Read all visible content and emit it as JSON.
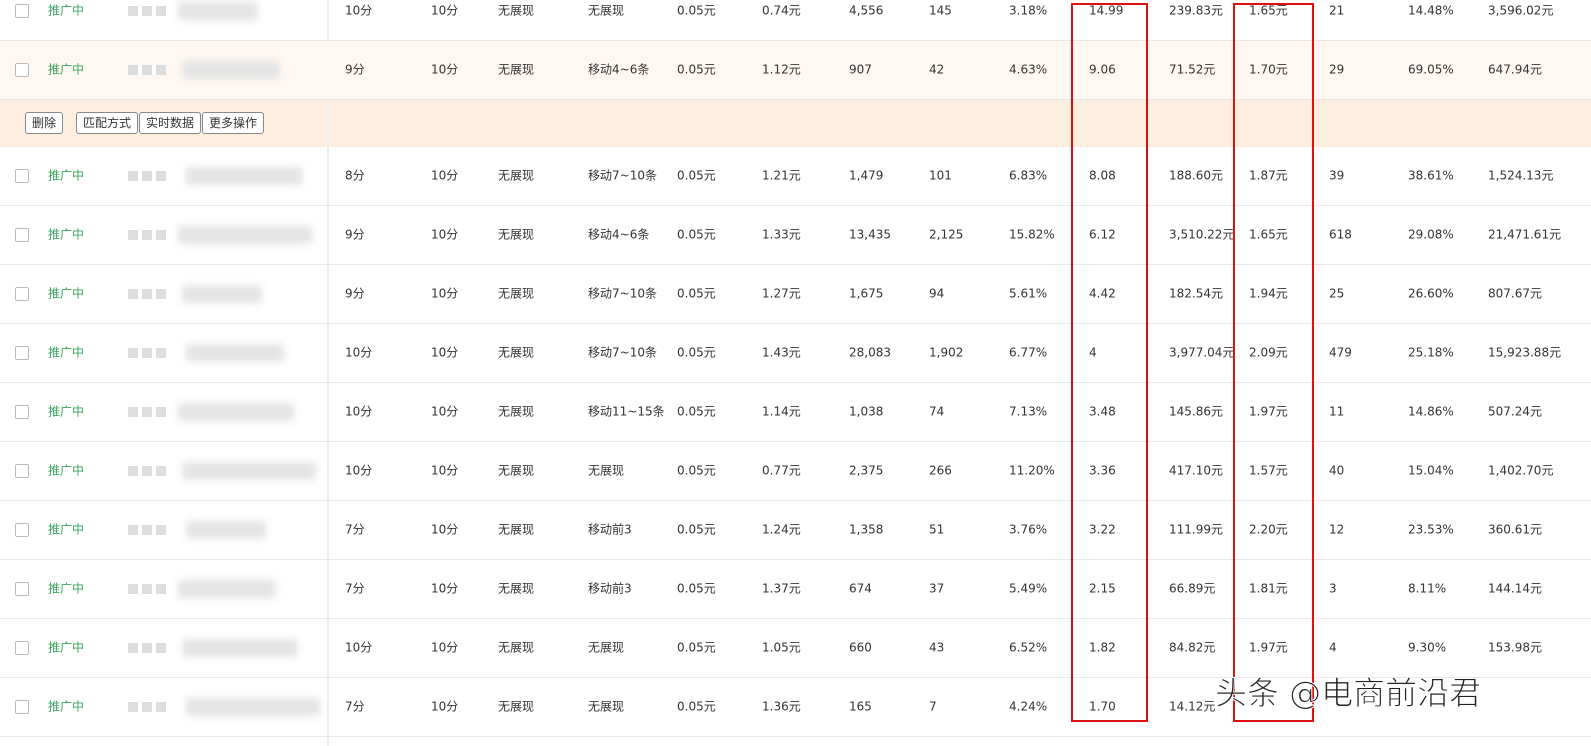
{
  "table": {
    "rows": [
      {
        "status": "推广中",
        "cells": [
          "10分",
          "10分",
          "无展现",
          "无展现",
          "0.05元",
          "0.74元",
          "4,556",
          "145",
          "3.18%",
          "14.99",
          "239.83元",
          "1.65元",
          "21",
          "14.48%",
          "3,596.02元"
        ]
      },
      {
        "status": "推广中",
        "cells": [
          "9分",
          "10分",
          "无展现",
          "移动4~6条",
          "0.05元",
          "1.12元",
          "907",
          "42",
          "4.63%",
          "9.06",
          "71.52元",
          "1.70元",
          "29",
          "69.05%",
          "647.94元"
        ]
      },
      {
        "status": "推广中",
        "cells": [
          "8分",
          "10分",
          "无展现",
          "移动7~10条",
          "0.05元",
          "1.21元",
          "1,479",
          "101",
          "6.83%",
          "8.08",
          "188.60元",
          "1.87元",
          "39",
          "38.61%",
          "1,524.13元"
        ]
      },
      {
        "status": "推广中",
        "cells": [
          "9分",
          "10分",
          "无展现",
          "移动4~6条",
          "0.05元",
          "1.33元",
          "13,435",
          "2,125",
          "15.82%",
          "6.12",
          "3,510.22元",
          "1.65元",
          "618",
          "29.08%",
          "21,471.61元"
        ]
      },
      {
        "status": "推广中",
        "cells": [
          "9分",
          "10分",
          "无展现",
          "移动7~10条",
          "0.05元",
          "1.27元",
          "1,675",
          "94",
          "5.61%",
          "4.42",
          "182.54元",
          "1.94元",
          "25",
          "26.60%",
          "807.67元"
        ]
      },
      {
        "status": "推广中",
        "cells": [
          "10分",
          "10分",
          "无展现",
          "移动7~10条",
          "0.05元",
          "1.43元",
          "28,083",
          "1,902",
          "6.77%",
          "4",
          "3,977.04元",
          "2.09元",
          "479",
          "25.18%",
          "15,923.88元"
        ]
      },
      {
        "status": "推广中",
        "cells": [
          "10分",
          "10分",
          "无展现",
          "移动11~15条",
          "0.05元",
          "1.14元",
          "1,038",
          "74",
          "7.13%",
          "3.48",
          "145.86元",
          "1.97元",
          "11",
          "14.86%",
          "507.24元"
        ]
      },
      {
        "status": "推广中",
        "cells": [
          "10分",
          "10分",
          "无展现",
          "无展现",
          "0.05元",
          "0.77元",
          "2,375",
          "266",
          "11.20%",
          "3.36",
          "417.10元",
          "1.57元",
          "40",
          "15.04%",
          "1,402.70元"
        ]
      },
      {
        "status": "推广中",
        "cells": [
          "7分",
          "10分",
          "无展现",
          "移动前3",
          "0.05元",
          "1.24元",
          "1,358",
          "51",
          "3.76%",
          "3.22",
          "111.99元",
          "2.20元",
          "12",
          "23.53%",
          "360.61元"
        ]
      },
      {
        "status": "推广中",
        "cells": [
          "7分",
          "10分",
          "无展现",
          "移动前3",
          "0.05元",
          "1.37元",
          "674",
          "37",
          "5.49%",
          "2.15",
          "66.89元",
          "1.81元",
          "3",
          "8.11%",
          "144.14元"
        ]
      },
      {
        "status": "推广中",
        "cells": [
          "10分",
          "10分",
          "无展现",
          "无展现",
          "0.05元",
          "1.05元",
          "660",
          "43",
          "6.52%",
          "1.82",
          "84.82元",
          "1.97元",
          "4",
          "9.30%",
          "153.98元"
        ]
      },
      {
        "status": "推广中",
        "cells": [
          "7分",
          "10分",
          "无展现",
          "无展现",
          "0.05元",
          "1.36元",
          "165",
          "7",
          "4.24%",
          "1.70",
          "14.12元"
        ]
      }
    ],
    "actions": [
      "删除",
      "匹配方式",
      "实时数据",
      "更多操作"
    ]
  },
  "watermark": "头条 @电商前沿君"
}
